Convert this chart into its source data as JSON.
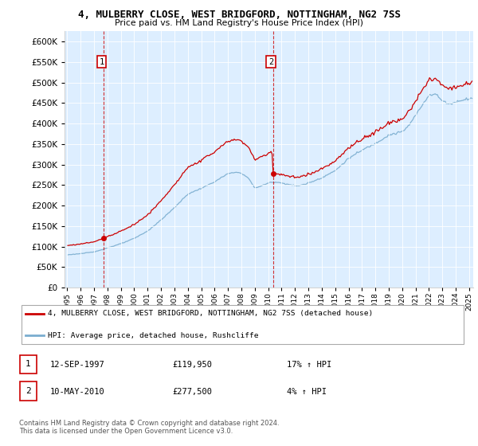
{
  "title": "4, MULBERRY CLOSE, WEST BRIDGFORD, NOTTINGHAM, NG2 7SS",
  "subtitle": "Price paid vs. HM Land Registry's House Price Index (HPI)",
  "legend_line1": "4, MULBERRY CLOSE, WEST BRIDGFORD, NOTTINGHAM, NG2 7SS (detached house)",
  "legend_line2": "HPI: Average price, detached house, Rushcliffe",
  "transaction1_date": "12-SEP-1997",
  "transaction1_price": "£119,950",
  "transaction1_hpi": "17% ↑ HPI",
  "transaction2_date": "10-MAY-2010",
  "transaction2_price": "£277,500",
  "transaction2_hpi": "4% ↑ HPI",
  "footnote": "Contains HM Land Registry data © Crown copyright and database right 2024.\nThis data is licensed under the Open Government Licence v3.0.",
  "house_color": "#cc0000",
  "hpi_color": "#7aadcf",
  "transaction1_x": 1997.71,
  "transaction1_y": 119950,
  "transaction2_x": 2010.36,
  "transaction2_y": 277500,
  "ylim": [
    0,
    625000
  ],
  "yticks": [
    0,
    50000,
    100000,
    150000,
    200000,
    250000,
    300000,
    350000,
    400000,
    450000,
    500000,
    550000,
    600000
  ],
  "xmin": 1994.8,
  "xmax": 2025.3,
  "bg_color": "#ddeeff"
}
